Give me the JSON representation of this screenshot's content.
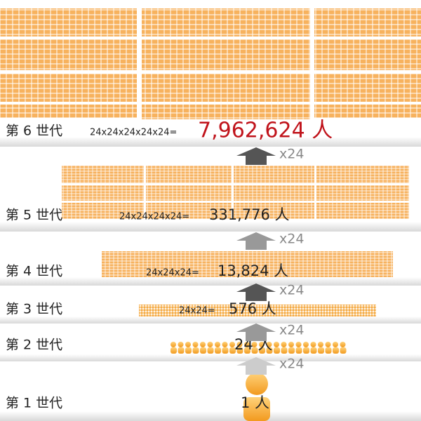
{
  "generations": [
    {
      "label": "第 6 世代",
      "formula": "24x24x24x24x24=",
      "count": "7,962,624 人"
    },
    {
      "label": "第 5 世代",
      "formula": "24x24x24x24=",
      "count": "331,776 人"
    },
    {
      "label": "第 4 世代",
      "formula": "24x24x24=",
      "count": "13,824 人"
    },
    {
      "label": "第 3 世代",
      "formula": "24x24=",
      "count": "576 人"
    },
    {
      "label": "第 2 世代",
      "count": "24 人"
    },
    {
      "label": "第 1 世代",
      "count": "1 人"
    }
  ],
  "multipliers": [
    "x24",
    "x24",
    "x24",
    "x24",
    "x24"
  ]
}
